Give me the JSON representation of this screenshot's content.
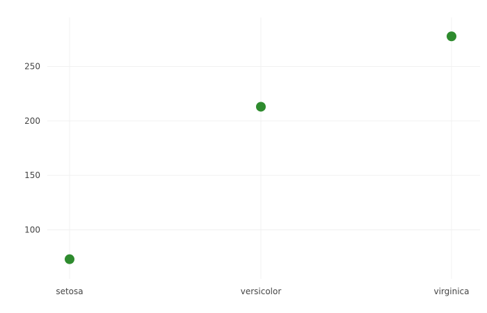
{
  "chart_data": {
    "type": "scatter",
    "categories": [
      "setosa",
      "versicolor",
      "virginica"
    ],
    "values": [
      73.1,
      213.0,
      277.6
    ],
    "ylim": [
      55,
      295
    ],
    "yticks": [
      100,
      150,
      200,
      250
    ],
    "ytick_labels": [
      "100",
      "150",
      "200",
      "250"
    ],
    "grid": true,
    "marker_color": "#2e8b2e",
    "grid_color": "#f0f0f0",
    "tick_label_color": "#444444"
  }
}
